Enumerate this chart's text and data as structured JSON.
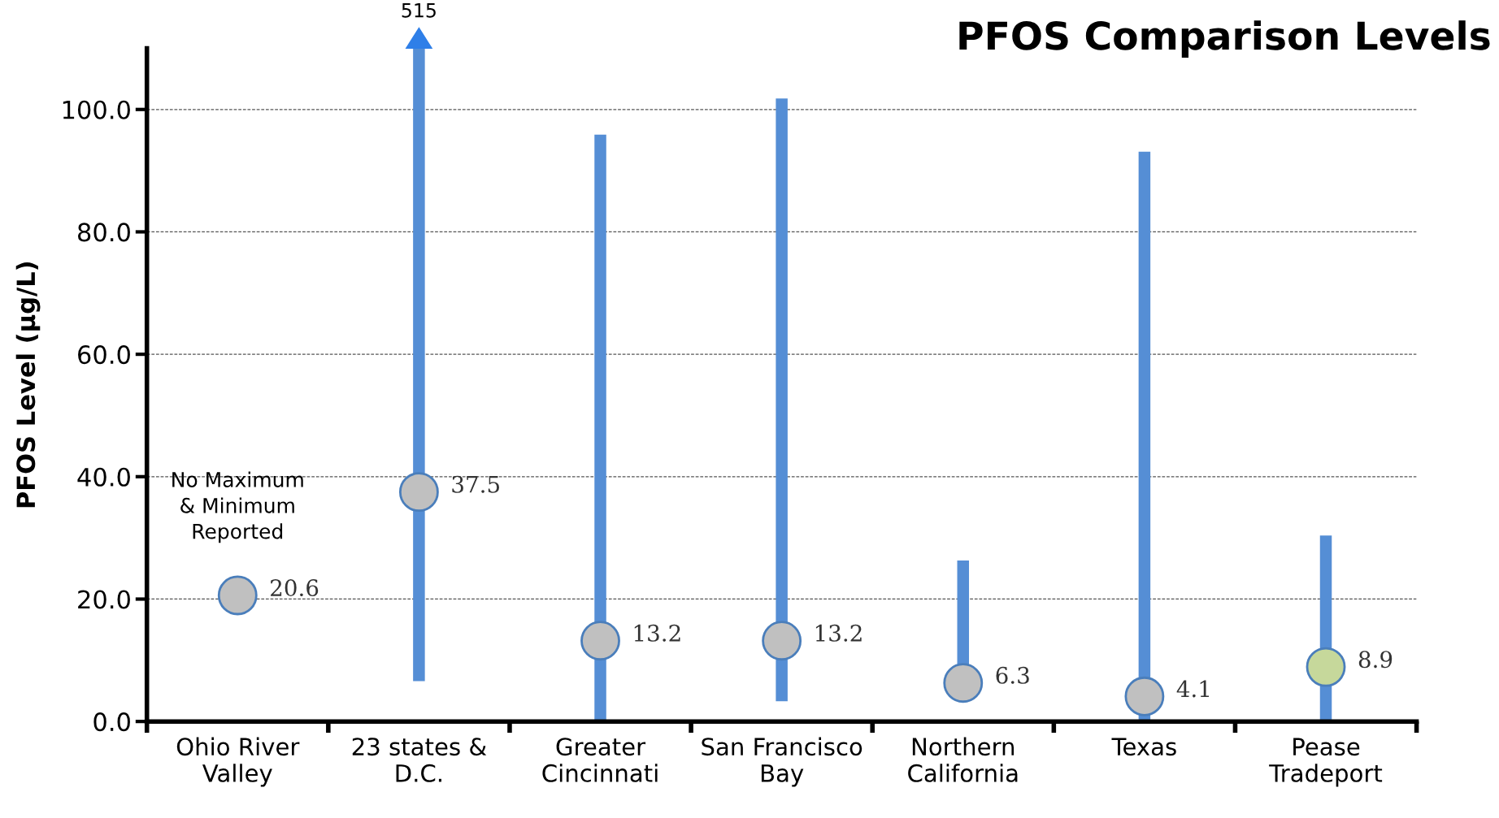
{
  "chart_data": {
    "type": "bar",
    "title": "PFOS Comparison Levels",
    "ylabel": "PFOS Level (µg/L)",
    "categories": [
      "Ohio River\nValley",
      "23 states &\nD.C.",
      "Greater\nCincinnati",
      "San Francisco\nBay",
      "Northern\nCalifornia",
      "Texas",
      "Pease\nTradeport"
    ],
    "series": [
      {
        "color": "#558ed5",
        "base": [
          null,
          6.6,
          0,
          3.3,
          6.3,
          0,
          0
        ],
        "values": [
          null,
          103.4,
          95.9,
          98.5,
          20.0,
          93.1,
          30.4
        ]
      },
      {
        "type": "scatter",
        "colors": [
          "#c0c0c0",
          "#c0c0c0",
          "#c0c0c0",
          "#c0c0c0",
          "#c0c0c0",
          "#c0c0c0",
          "#c6d89b"
        ],
        "values": [
          20.6,
          37.5,
          13.2,
          13.2,
          6.3,
          4.1,
          8.9
        ],
        "data_labels": true
      }
    ],
    "annotations": [
      "No Maximum\n& Minimum\nReported",
      {
        "text": "515",
        "x": "23 states &\nD.C.",
        "y": 110
      }
    ],
    "ylim": [
      0,
      110
    ],
    "yticks": [
      {
        "value": 0,
        "label": "0.0"
      },
      {
        "value": 20,
        "label": "20.0"
      },
      {
        "value": 40,
        "label": "40.0"
      },
      {
        "value": 60,
        "label": "60.0"
      },
      {
        "value": 80,
        "label": "80.0"
      },
      {
        "value": 100,
        "label": "100.0"
      }
    ],
    "grid": "y",
    "line_style": "dashed",
    "marker": "circle"
  }
}
